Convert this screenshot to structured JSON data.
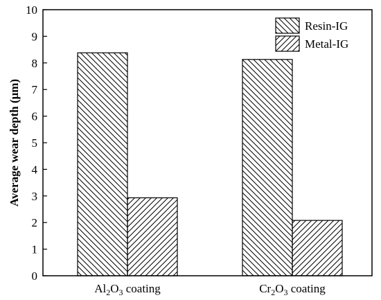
{
  "chart_data": {
    "type": "bar",
    "categories": [
      {
        "base": "Al",
        "sub1": "2",
        "mid": "O",
        "sub2": "3",
        "tail": " coating"
      },
      {
        "base": "Cr",
        "sub1": "2",
        "mid": "O",
        "sub2": "3",
        "tail": " coating"
      }
    ],
    "series": [
      {
        "name": "Resin-IG",
        "values": [
          8.38,
          8.13
        ],
        "pattern": "backslash"
      },
      {
        "name": "Metal-IG",
        "values": [
          2.93,
          2.08
        ],
        "pattern": "slash"
      }
    ],
    "ylabel": "Average wear depth (μm)",
    "xlabel": "",
    "ylim": [
      0,
      10
    ],
    "yticks": [
      "0",
      "1",
      "2",
      "3",
      "4",
      "5",
      "6",
      "7",
      "8",
      "9",
      "10"
    ],
    "legend_position": "top-right",
    "grid": false,
    "colors": {
      "bar_fill": "#ffffff",
      "stroke": "#000000"
    }
  }
}
